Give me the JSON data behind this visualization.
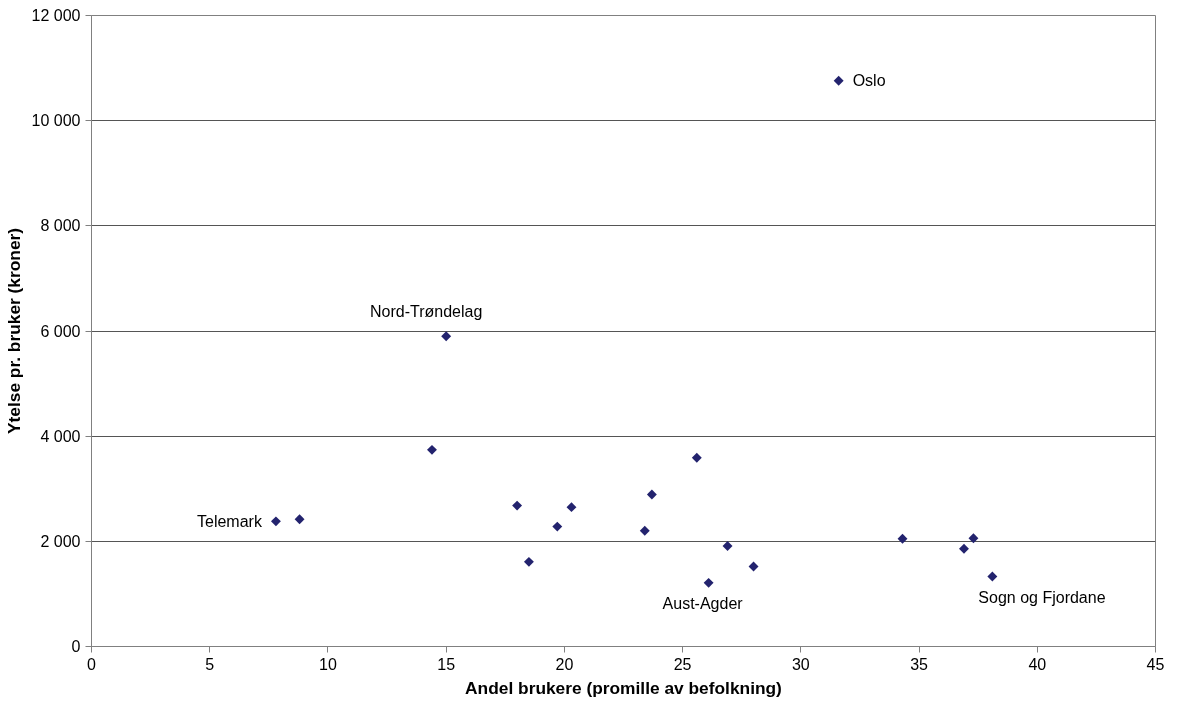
{
  "chart_data": {
    "type": "scatter",
    "xlabel": "Andel brukere (promille av befolkning)",
    "ylabel": "Ytelse pr. bruker (kroner)",
    "x": [
      7.8,
      8.8,
      14.4,
      15.0,
      18.0,
      18.5,
      19.7,
      20.3,
      23.4,
      23.7,
      25.6,
      26.1,
      26.9,
      28.0,
      31.6,
      34.3,
      36.9,
      37.3,
      38.1
    ],
    "series": [
      {
        "color": "#23236e",
        "values": [
          2380,
          2420,
          3740,
          5900,
          2680,
          1610,
          2280,
          2650,
          2200,
          2890,
          3590,
          1210,
          1910,
          1520,
          10760,
          2050,
          1860,
          2060,
          1330
        ]
      }
    ],
    "marker": "diamond",
    "grid": "y",
    "xlim": [
      0,
      45
    ],
    "xticks": [
      0,
      5,
      10,
      15,
      20,
      25,
      30,
      35,
      40,
      45
    ],
    "ylim": [
      0,
      12000
    ],
    "yticks": [
      0,
      {
        "value": 2000,
        "label": "2 000"
      },
      {
        "value": 4000,
        "label": "4 000"
      },
      {
        "value": 6000,
        "label": "6 000"
      },
      {
        "value": 8000,
        "label": "8 000"
      },
      {
        "value": 10000,
        "label": "10 000"
      },
      {
        "value": 12000,
        "label": "12 000"
      }
    ],
    "annotations": [
      {
        "text": "Telemark",
        "x": 7.8,
        "y": 2380
      },
      {
        "text": "Nord-Trøndelag",
        "x": 15.0,
        "y": 5900
      },
      {
        "text": "Oslo",
        "x": 31.6,
        "y": 10760
      },
      {
        "text": "Aust-Agder",
        "x": 26.1,
        "y": 1210
      },
      {
        "text": "Sogn og Fjordane",
        "x": 38.1,
        "y": 1330
      }
    ]
  }
}
